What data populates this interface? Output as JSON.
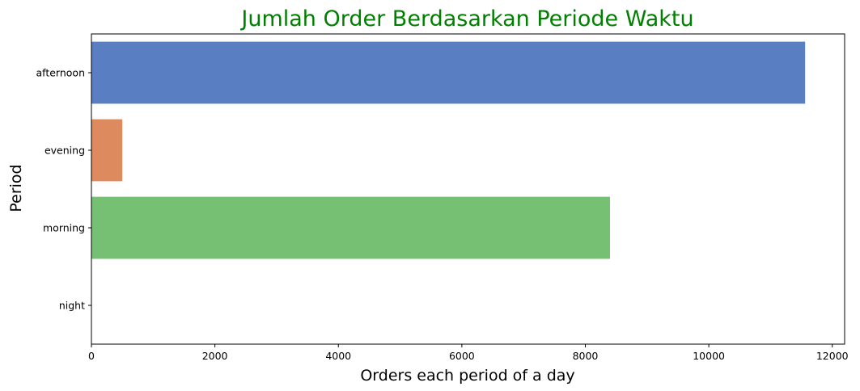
{
  "chart_data": {
    "type": "bar",
    "orientation": "horizontal",
    "title": "Jumlah Order Berdasarkan Periode Waktu",
    "title_color": "#008000",
    "xlabel": "Orders each period of a day",
    "ylabel": "Period",
    "categories": [
      "afternoon",
      "evening",
      "morning",
      "night"
    ],
    "values": [
      11560,
      500,
      8400,
      0
    ],
    "colors": [
      "#5a7ec2",
      "#dd8a5e",
      "#75c072",
      "#c44e52"
    ],
    "xlim": [
      0,
      12200
    ],
    "xticks": [
      0,
      2000,
      4000,
      6000,
      8000,
      10000,
      12000
    ],
    "grid": false,
    "legend": "none"
  }
}
